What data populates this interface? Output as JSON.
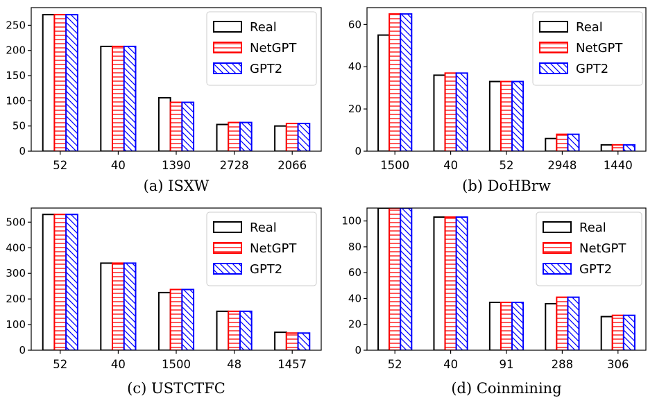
{
  "legend": {
    "series": [
      {
        "name": "Real",
        "color": "#000000",
        "hatch": "none"
      },
      {
        "name": "NetGPT",
        "color": "#ff0000",
        "hatch": "horizontal"
      },
      {
        "name": "GPT2",
        "color": "#0000ff",
        "hatch": "diagonal"
      }
    ]
  },
  "chart_data": [
    {
      "type": "bar",
      "title": "(a) ISXW",
      "categories": [
        "52",
        "40",
        "1390",
        "2728",
        "2066"
      ],
      "series": [
        {
          "name": "Real",
          "values": [
            271,
            208,
            106,
            53,
            50
          ]
        },
        {
          "name": "NetGPT",
          "values": [
            271,
            208,
            97,
            57,
            55
          ]
        },
        {
          "name": "GPT2",
          "values": [
            271,
            208,
            97,
            57,
            55
          ]
        }
      ],
      "ylim": [
        0,
        285
      ],
      "yticks": [
        0,
        50,
        100,
        150,
        200,
        250
      ],
      "legend_position": "top-right"
    },
    {
      "type": "bar",
      "title": "(b) DoHBrw",
      "categories": [
        "1500",
        "40",
        "52",
        "2948",
        "1440"
      ],
      "series": [
        {
          "name": "Real",
          "values": [
            55,
            36,
            33,
            6,
            3
          ]
        },
        {
          "name": "NetGPT",
          "values": [
            65,
            37,
            33,
            8,
            3
          ]
        },
        {
          "name": "GPT2",
          "values": [
            65,
            37,
            33,
            8,
            3
          ]
        }
      ],
      "ylim": [
        0,
        68
      ],
      "yticks": [
        0,
        20,
        40,
        60
      ],
      "legend_position": "top-right"
    },
    {
      "type": "bar",
      "title": "(c) USTCTFC",
      "categories": [
        "52",
        "40",
        "1500",
        "48",
        "1457"
      ],
      "series": [
        {
          "name": "Real",
          "values": [
            530,
            340,
            225,
            152,
            70
          ]
        },
        {
          "name": "NetGPT",
          "values": [
            530,
            340,
            237,
            152,
            67
          ]
        },
        {
          "name": "GPT2",
          "values": [
            530,
            340,
            237,
            152,
            67
          ]
        }
      ],
      "ylim": [
        0,
        555
      ],
      "yticks": [
        0,
        100,
        200,
        300,
        400,
        500
      ],
      "legend_position": "top-right"
    },
    {
      "type": "bar",
      "title": "(d) Coinmining",
      "categories": [
        "52",
        "40",
        "91",
        "288",
        "306"
      ],
      "series": [
        {
          "name": "Real",
          "values": [
            110,
            103,
            37,
            36,
            26
          ]
        },
        {
          "name": "NetGPT",
          "values": [
            110,
            103,
            37,
            41,
            27
          ]
        },
        {
          "name": "GPT2",
          "values": [
            110,
            103,
            37,
            41,
            27
          ]
        }
      ],
      "ylim": [
        0,
        110
      ],
      "yticks": [
        0,
        20,
        40,
        60,
        80,
        100
      ],
      "legend_position": "top-right"
    }
  ]
}
